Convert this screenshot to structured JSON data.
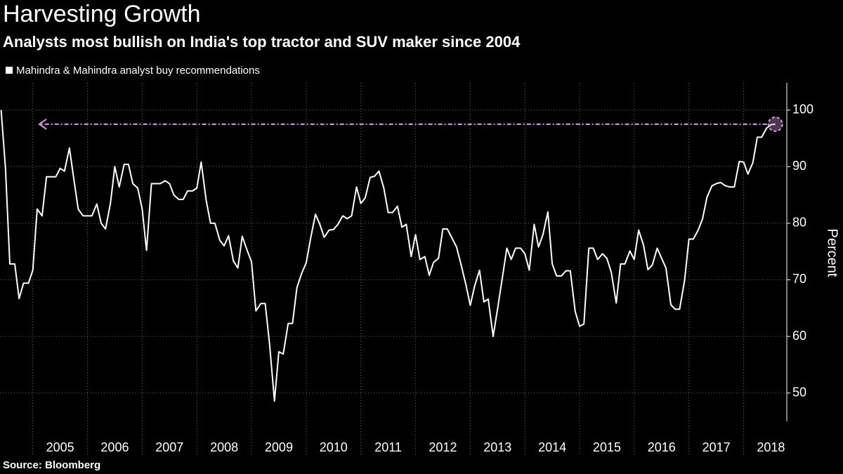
{
  "chart_data": {
    "type": "line",
    "title": "Harvesting Growth",
    "subtitle": "Analysts most bullish on India's top tractor and SUV maker since 2004",
    "y_label": "Percent",
    "source": "Source: Bloomberg",
    "grid": true,
    "legend": "top-left",
    "xlim": [
      2004.4,
      2018.79
    ],
    "ylim": [
      45,
      104.8
    ],
    "yticks": [
      50,
      60,
      70,
      80,
      90,
      100
    ],
    "xticks": [
      2005,
      2006,
      2007,
      2008,
      2009,
      2010,
      2011,
      2012,
      2013,
      2014,
      2015,
      2016,
      2017,
      2018
    ],
    "x": [
      2004.42,
      2004.5,
      2004.58,
      2004.67,
      2004.75,
      2004.83,
      2004.92,
      2005,
      2005.08,
      2005.17,
      2005.25,
      2005.33,
      2005.42,
      2005.5,
      2005.58,
      2005.67,
      2005.75,
      2005.83,
      2005.92,
      2006,
      2006.08,
      2006.17,
      2006.25,
      2006.33,
      2006.42,
      2006.5,
      2006.58,
      2006.67,
      2006.75,
      2006.83,
      2006.92,
      2007,
      2007.08,
      2007.17,
      2007.25,
      2007.33,
      2007.42,
      2007.5,
      2007.58,
      2007.67,
      2007.75,
      2007.83,
      2007.92,
      2008,
      2008.08,
      2008.17,
      2008.25,
      2008.33,
      2008.42,
      2008.5,
      2008.58,
      2008.67,
      2008.75,
      2008.83,
      2008.92,
      2009,
      2009.08,
      2009.17,
      2009.25,
      2009.33,
      2009.42,
      2009.5,
      2009.58,
      2009.67,
      2009.75,
      2009.83,
      2009.92,
      2010,
      2010.08,
      2010.17,
      2010.25,
      2010.33,
      2010.42,
      2010.5,
      2010.58,
      2010.67,
      2010.75,
      2010.83,
      2010.92,
      2011,
      2011.08,
      2011.17,
      2011.25,
      2011.33,
      2011.42,
      2011.5,
      2011.58,
      2011.67,
      2011.75,
      2011.83,
      2011.92,
      2012,
      2012.08,
      2012.17,
      2012.25,
      2012.33,
      2012.42,
      2012.5,
      2012.58,
      2012.67,
      2012.75,
      2012.83,
      2012.92,
      2013,
      2013.08,
      2013.17,
      2013.25,
      2013.33,
      2013.42,
      2013.5,
      2013.58,
      2013.67,
      2013.75,
      2013.83,
      2013.92,
      2014,
      2014.08,
      2014.17,
      2014.25,
      2014.33,
      2014.42,
      2014.5,
      2014.58,
      2014.67,
      2014.75,
      2014.83,
      2014.92,
      2015,
      2015.08,
      2015.17,
      2015.25,
      2015.33,
      2015.42,
      2015.5,
      2015.58,
      2015.67,
      2015.75,
      2015.83,
      2015.92,
      2016,
      2016.08,
      2016.17,
      2016.25,
      2016.33,
      2016.42,
      2016.5,
      2016.58,
      2016.67,
      2016.75,
      2016.83,
      2016.92,
      2017,
      2017.08,
      2017.17,
      2017.25,
      2017.33,
      2017.42,
      2017.5,
      2017.58,
      2017.67,
      2017.75,
      2017.83,
      2017.92,
      2018,
      2018.08,
      2018.17,
      2018.25,
      2018.33,
      2018.42,
      2018.5,
      2018.58
    ],
    "series": [
      {
        "name": "Mahindra & Mahindra analyst buy recommendations",
        "color": "#ffffff",
        "values": [
          100,
          89.7,
          72.8,
          72.8,
          66.7,
          69.4,
          69.4,
          71.7,
          82.5,
          81.3,
          88.2,
          88.2,
          88.2,
          89.7,
          89.2,
          93.3,
          87.8,
          82.5,
          81.3,
          81.3,
          81.3,
          83.4,
          80,
          79,
          83.5,
          90,
          86.4,
          90.4,
          90.4,
          87,
          86.2,
          82.5,
          75.2,
          87,
          87,
          87,
          87.5,
          87,
          85,
          84.2,
          84.2,
          85.7,
          85.7,
          86.2,
          90.8,
          84.1,
          80,
          80,
          77,
          76,
          77.8,
          73.3,
          72.1,
          77.7,
          75.2,
          73.2,
          64.5,
          65.8,
          65.8,
          58.7,
          48.6,
          57.3,
          56.9,
          62.3,
          62.3,
          68.6,
          71.2,
          73,
          77.3,
          81.6,
          79.8,
          77.5,
          78.8,
          78.9,
          79.8,
          81.3,
          80.8,
          81.3,
          86.4,
          83.5,
          84.5,
          88.1,
          88.3,
          89.2,
          86.2,
          81.9,
          81.9,
          83,
          79.3,
          79.8,
          74.1,
          78,
          73.6,
          74.1,
          70.8,
          73.1,
          73.8,
          79,
          79,
          77.3,
          75.8,
          72.8,
          69.2,
          65.5,
          68.9,
          71.7,
          66.1,
          66.6,
          60,
          64.9,
          69.9,
          75.6,
          73.6,
          75.6,
          75.6,
          74.6,
          71.7,
          79.8,
          75.8,
          78,
          82,
          72.8,
          70.7,
          70.7,
          71.6,
          71.6,
          64.4,
          61.8,
          62.2,
          75.6,
          75.6,
          73.6,
          74.6,
          73.8,
          71.3,
          65.9,
          72.8,
          72.8,
          75.1,
          73.6,
          78.8,
          76.1,
          71.8,
          72.6,
          75.6,
          73.8,
          72.1,
          65.6,
          64.8,
          64.8,
          69.9,
          77.2,
          77.2,
          78.8,
          80.8,
          84.6,
          86.6,
          87,
          87.2,
          86.6,
          86.4,
          86.4,
          90.9,
          90.8,
          88.7,
          90.7,
          95.2,
          95.2,
          96.8,
          97.4,
          97.5
        ]
      }
    ]
  }
}
